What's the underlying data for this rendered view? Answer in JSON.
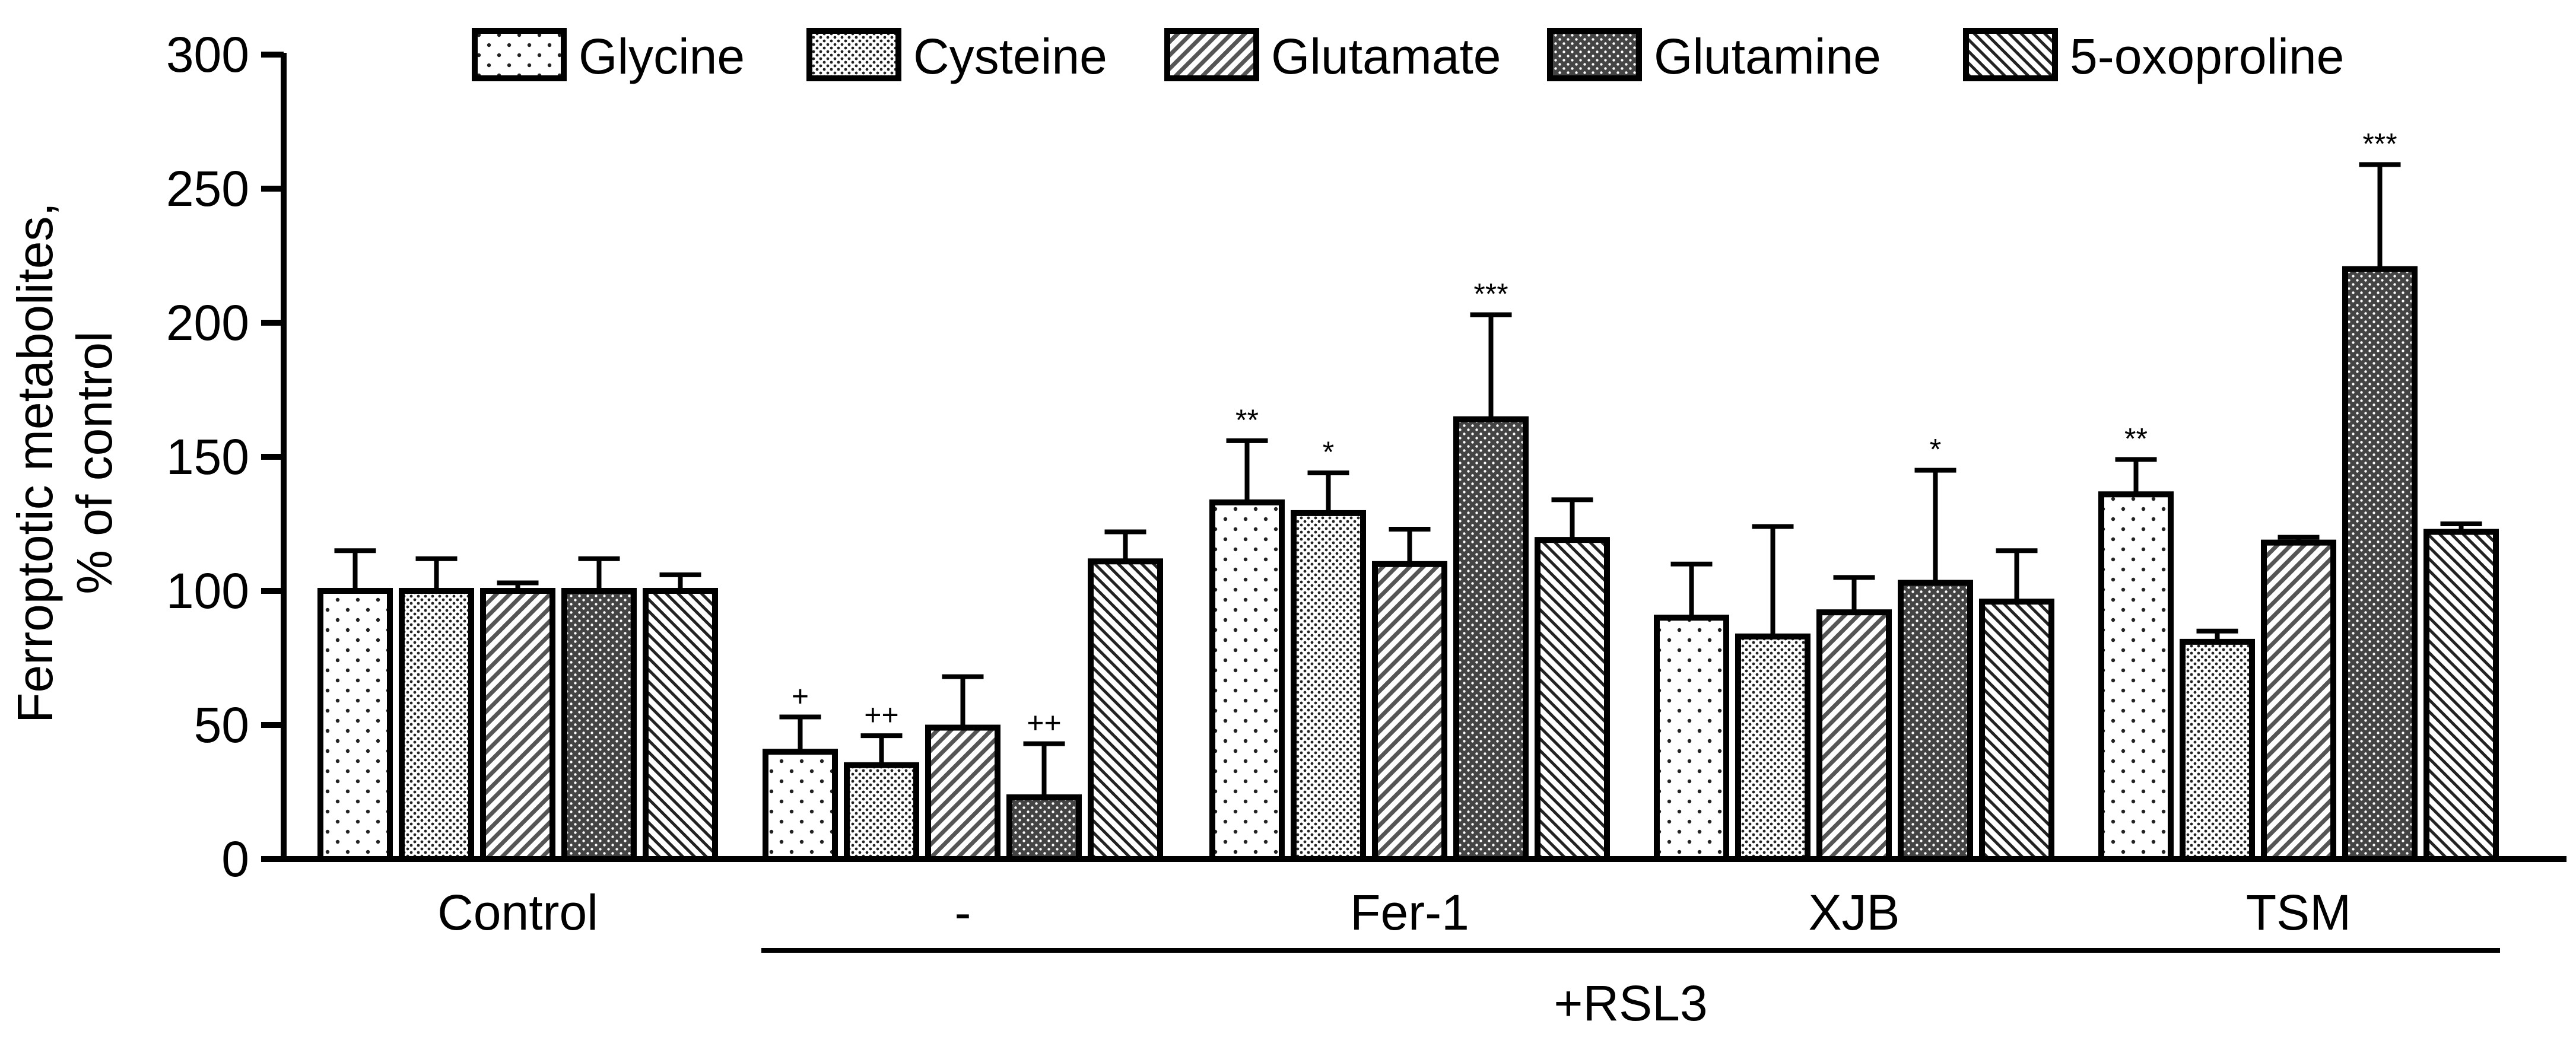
{
  "chart_data": {
    "type": "bar",
    "title": "",
    "xlabel": "",
    "ylabel": [
      "Ferroptotic metabolites,",
      "% of control"
    ],
    "ylim": [
      0,
      300
    ],
    "yticks": [
      0,
      50,
      100,
      150,
      200,
      250,
      300
    ],
    "grid": false,
    "legend_position": "top",
    "categories": [
      "Control",
      "-",
      "Fer-1",
      "XJB",
      "TSM"
    ],
    "group_annotation": {
      "label": "+RSL3",
      "spans": [
        "-",
        "Fer-1",
        "XJB",
        "TSM"
      ]
    },
    "series": [
      {
        "name": "Glycine",
        "pattern": "sparse-dots",
        "values": [
          100,
          40,
          133,
          90,
          136
        ],
        "errors": [
          15,
          13,
          23,
          20,
          13
        ],
        "annotations": [
          "",
          "+",
          "**",
          "",
          "**"
        ]
      },
      {
        "name": "Cysteine",
        "pattern": "dense-dots",
        "values": [
          100,
          35,
          129,
          83,
          81
        ],
        "errors": [
          12,
          11,
          15,
          41,
          4
        ],
        "annotations": [
          "",
          "++",
          "*",
          "",
          ""
        ]
      },
      {
        "name": "Glutamate",
        "pattern": "diagonal-right",
        "values": [
          100,
          49,
          110,
          92,
          118
        ],
        "errors": [
          3,
          19,
          13,
          13,
          2
        ],
        "annotations": [
          "",
          "",
          "",
          "",
          ""
        ]
      },
      {
        "name": "Glutamine",
        "pattern": "checker",
        "values": [
          100,
          23,
          164,
          103,
          220
        ],
        "errors": [
          12,
          20,
          39,
          42,
          39
        ],
        "annotations": [
          "",
          "++",
          "***",
          "*",
          "***"
        ]
      },
      {
        "name": "5-oxoproline",
        "pattern": "diagonal-left",
        "values": [
          100,
          111,
          119,
          96,
          122
        ],
        "errors": [
          6,
          11,
          15,
          19,
          3
        ],
        "annotations": [
          "",
          "",
          "",
          "",
          ""
        ]
      }
    ],
    "colors": {
      "ink": "#000000",
      "fill": "#ffffff",
      "pattern": "#222222"
    }
  }
}
